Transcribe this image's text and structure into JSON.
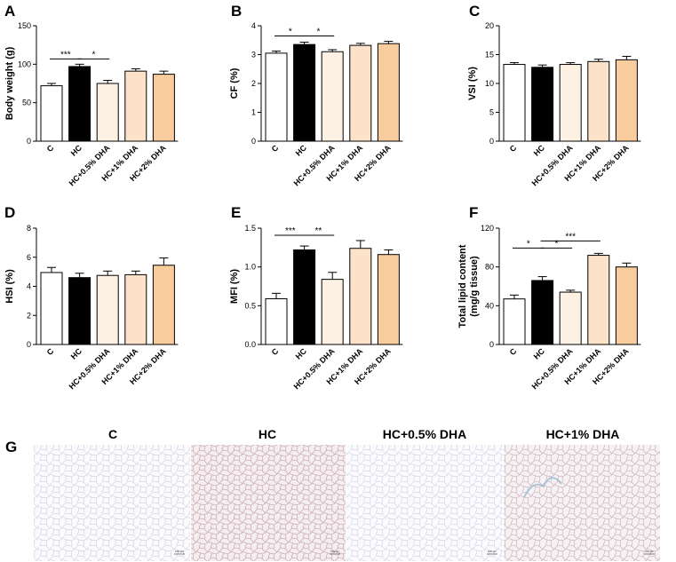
{
  "colors": {
    "C": "#ffffff",
    "HC": "#000000",
    "HC+0.5% DHA": "#fdf1e4",
    "HC+1% DHA": "#fbe2c8",
    "HC+2% DHA": "#f8cc9d"
  },
  "chart_data": [
    {
      "type": "bar",
      "panel": "A",
      "ylabel": "Body weight (g)",
      "ylim": [
        0,
        150
      ],
      "yticks": [
        0,
        50,
        100,
        150
      ],
      "categories": [
        "C",
        "HC",
        "HC+0.5% DHA",
        "HC+1% DHA",
        "HC+2% DHA"
      ],
      "values": [
        72,
        97,
        75,
        91,
        87
      ],
      "errors": [
        3,
        3,
        4,
        3,
        4
      ],
      "significance": [
        {
          "from": 0,
          "to": 1,
          "label": "***"
        },
        {
          "from": 1,
          "to": 2,
          "label": "*"
        }
      ]
    },
    {
      "type": "bar",
      "panel": "B",
      "ylabel": "CF (%)",
      "ylim": [
        0,
        4
      ],
      "yticks": [
        0,
        1,
        2,
        3,
        4
      ],
      "categories": [
        "C",
        "HC",
        "HC+0.5% DHA",
        "HC+1% DHA",
        "HC+2% DHA"
      ],
      "values": [
        3.05,
        3.35,
        3.1,
        3.32,
        3.38
      ],
      "errors": [
        0.07,
        0.08,
        0.07,
        0.07,
        0.08
      ],
      "significance": [
        {
          "from": 0,
          "to": 1,
          "label": "*"
        },
        {
          "from": 1,
          "to": 2,
          "label": "*"
        }
      ]
    },
    {
      "type": "bar",
      "panel": "C",
      "ylabel": "VSI (%)",
      "ylim": [
        0,
        20
      ],
      "yticks": [
        0,
        5,
        10,
        15,
        20
      ],
      "categories": [
        "C",
        "HC",
        "HC+0.5% DHA",
        "HC+1% DHA",
        "HC+2% DHA"
      ],
      "values": [
        13.3,
        12.8,
        13.3,
        13.8,
        14.1
      ],
      "errors": [
        0.3,
        0.4,
        0.3,
        0.4,
        0.6
      ],
      "significance": []
    },
    {
      "type": "bar",
      "panel": "D",
      "ylabel": "HSI (%)",
      "ylim": [
        0,
        8
      ],
      "yticks": [
        0,
        2,
        4,
        6,
        8
      ],
      "categories": [
        "C",
        "HC",
        "HC+0.5% DHA",
        "HC+1% DHA",
        "HC+2% DHA"
      ],
      "values": [
        4.95,
        4.6,
        4.75,
        4.8,
        5.45
      ],
      "errors": [
        0.35,
        0.3,
        0.3,
        0.25,
        0.5
      ],
      "significance": []
    },
    {
      "type": "bar",
      "panel": "E",
      "ylabel": "MFI (%)",
      "ylim": [
        0,
        1.5
      ],
      "yticks": [
        "0.0",
        "0.5",
        "1.0",
        "1.5"
      ],
      "categories": [
        "C",
        "HC",
        "HC+0.5% DHA",
        "HC+1% DHA",
        "HC+2% DHA"
      ],
      "values": [
        0.59,
        1.22,
        0.84,
        1.24,
        1.16
      ],
      "errors": [
        0.07,
        0.05,
        0.09,
        0.1,
        0.06
      ],
      "significance": [
        {
          "from": 0,
          "to": 1,
          "label": "***"
        },
        {
          "from": 1,
          "to": 2,
          "label": "**"
        }
      ]
    },
    {
      "type": "bar",
      "panel": "F",
      "ylabel": "Total lipid content",
      "ylabel2": "(mg/g tissue)",
      "ylim": [
        0,
        120
      ],
      "yticks": [
        0,
        40,
        80,
        120
      ],
      "categories": [
        "C",
        "HC",
        "HC+0.5% DHA",
        "HC+1% DHA",
        "HC+2% DHA"
      ],
      "values": [
        47,
        66,
        54,
        92,
        80
      ],
      "errors": [
        4,
        4,
        2,
        2,
        4
      ],
      "significance": [
        {
          "from": 0,
          "to": 1,
          "label": "*"
        },
        {
          "from": 1,
          "to": 2,
          "label": "*"
        },
        {
          "from": 1,
          "to": 3,
          "label": "***"
        }
      ]
    }
  ],
  "micrographs": {
    "panel": "G",
    "labels": [
      "C",
      "HC",
      "HC+0.5% DHA",
      "HC+1% DHA"
    ],
    "scale_text": "100 μm"
  }
}
